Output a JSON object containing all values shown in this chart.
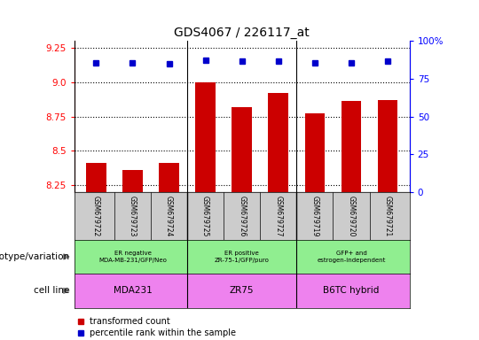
{
  "title": "GDS4067 / 226117_at",
  "samples": [
    "GSM679722",
    "GSM679723",
    "GSM679724",
    "GSM679725",
    "GSM679726",
    "GSM679727",
    "GSM679719",
    "GSM679720",
    "GSM679721"
  ],
  "red_values": [
    8.41,
    8.36,
    8.41,
    9.0,
    8.82,
    8.92,
    8.77,
    8.86,
    8.87
  ],
  "blue_values": [
    9.14,
    9.14,
    9.13,
    9.16,
    9.15,
    9.15,
    9.14,
    9.14,
    9.15
  ],
  "ylim_left": [
    8.2,
    9.3
  ],
  "ylim_right": [
    0,
    100
  ],
  "yticks_left": [
    8.25,
    8.5,
    8.75,
    9.0,
    9.25
  ],
  "yticks_right": [
    0,
    25,
    50,
    75,
    100
  ],
  "ytick_right_labels": [
    "0",
    "25",
    "50",
    "75",
    "100%"
  ],
  "group_labels": [
    "ER negative\nMDA-MB-231/GFP/Neo",
    "ER positive\nZR-75-1/GFP/puro",
    "GFP+ and\nestrogen-independent"
  ],
  "group_color": "#90EE90",
  "cell_labels": [
    "MDA231",
    "ZR75",
    "B6TC hybrid"
  ],
  "cell_color": "#EE82EE",
  "group_bounds": [
    2.5,
    5.5
  ],
  "group_centers": [
    1.0,
    4.0,
    7.0
  ],
  "red_color": "#CC0000",
  "blue_color": "#0000CC",
  "sample_bg_color": "#CCCCCC",
  "label_genotype": "genotype/variation",
  "label_cell": "cell line",
  "legend_red": "transformed count",
  "legend_blue": "percentile rank within the sample"
}
